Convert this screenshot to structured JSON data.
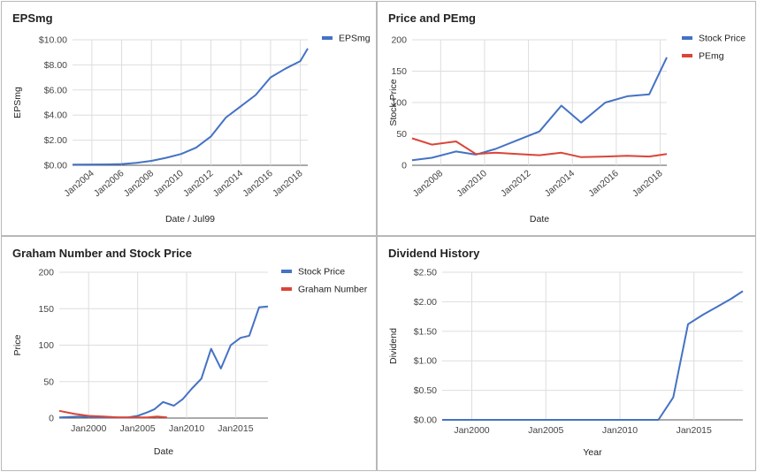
{
  "chart_data": [
    {
      "type": "line",
      "title": "EPSmg",
      "xlabel": "Date / Jul99",
      "ylabel": "EPSmg",
      "x_ticks": [
        "Jan2004",
        "Jan2006",
        "Jan2008",
        "Jan2010",
        "Jan2012",
        "Jan2014",
        "Jan2016",
        "Jan2018"
      ],
      "y_ticks": [
        "$0.00",
        "$2.00",
        "$4.00",
        "$6.00",
        "$8.00",
        "$10.00"
      ],
      "xlim": [
        2002.7,
        2018.5
      ],
      "ylim": [
        0,
        10
      ],
      "grid": true,
      "legend": "right",
      "series": [
        {
          "name": "EPSmg",
          "color": "#4472c4",
          "x": [
            2002.7,
            2004.0,
            2005.0,
            2006.0,
            2007.0,
            2008.0,
            2009.0,
            2010.0,
            2011.0,
            2012.0,
            2013.0,
            2014.0,
            2015.0,
            2016.0,
            2017.0,
            2018.0,
            2018.5
          ],
          "y": [
            0.05,
            0.06,
            0.07,
            0.1,
            0.2,
            0.35,
            0.6,
            0.9,
            1.4,
            2.3,
            3.8,
            4.7,
            5.6,
            7.0,
            7.7,
            8.3,
            9.3
          ]
        }
      ]
    },
    {
      "type": "line",
      "title": "Price and PEmg",
      "xlabel": "Date",
      "ylabel": "Stock Price",
      "x_ticks": [
        "Jan2008",
        "Jan2010",
        "Jan2012",
        "Jan2014",
        "Jan2016",
        "Jan2018"
      ],
      "y_ticks": [
        "0",
        "50",
        "100",
        "150",
        "200"
      ],
      "xlim": [
        2006.7,
        2018.3
      ],
      "ylim": [
        0,
        200
      ],
      "grid": true,
      "legend": "right",
      "series": [
        {
          "name": "Stock Price",
          "color": "#4472c4",
          "x": [
            2006.7,
            2007.6,
            2008.7,
            2009.6,
            2010.5,
            2011.5,
            2012.5,
            2013.5,
            2014.4,
            2015.5,
            2016.5,
            2017.5,
            2018.3
          ],
          "y": [
            8,
            12,
            22,
            17,
            26,
            40,
            54,
            95,
            68,
            100,
            110,
            113,
            172
          ]
        },
        {
          "name": "PEmg",
          "color": "#db4437",
          "x": [
            2006.7,
            2007.6,
            2008.7,
            2009.6,
            2010.5,
            2011.5,
            2012.5,
            2013.5,
            2014.4,
            2015.5,
            2016.5,
            2017.5,
            2018.3
          ],
          "y": [
            43,
            33,
            38,
            18,
            20,
            18,
            16,
            20,
            13,
            14,
            15,
            14,
            18
          ]
        }
      ]
    },
    {
      "type": "line",
      "title": "Graham Number and Stock Price",
      "xlabel": "Date",
      "ylabel": "Price",
      "x_ticks": [
        "Jan2000",
        "Jan2005",
        "Jan2010",
        "Jan2015"
      ],
      "y_ticks": [
        "0",
        "50",
        "100",
        "150",
        "200"
      ],
      "xlim": [
        1997.0,
        2018.3
      ],
      "ylim": [
        0,
        200
      ],
      "grid": true,
      "legend": "right",
      "series": [
        {
          "name": "Stock Price",
          "color": "#4472c4",
          "x": [
            1997.0,
            1999.0,
            2001.0,
            2003.0,
            2004.0,
            2005.0,
            2006.0,
            2006.7,
            2007.6,
            2008.7,
            2009.6,
            2010.5,
            2011.5,
            2012.5,
            2013.5,
            2014.5,
            2015.5,
            2016.4,
            2017.4,
            2018.3
          ],
          "y": [
            1,
            2,
            1,
            1,
            1,
            3,
            8,
            12,
            22,
            17,
            26,
            40,
            54,
            95,
            68,
            100,
            110,
            113,
            152,
            153
          ]
        },
        {
          "name": "Graham Number",
          "color": "#db4437",
          "x": [
            1997.0,
            1998.5,
            2000.0,
            2001.5,
            2003.0,
            2004.5,
            2006.0,
            2007.0,
            2008.0
          ],
          "y": [
            10,
            6,
            3,
            2,
            1,
            1,
            1,
            2,
            1
          ]
        }
      ]
    },
    {
      "type": "line",
      "title": "Dividend History",
      "xlabel": "Year",
      "ylabel": "Dividend",
      "x_ticks": [
        "Jan2000",
        "Jan2005",
        "Jan2010",
        "Jan2015"
      ],
      "y_ticks": [
        "$0.00",
        "$0.50",
        "$1.00",
        "$1.50",
        "$2.00",
        "$2.50"
      ],
      "xlim": [
        1998.0,
        2018.3
      ],
      "ylim": [
        0,
        2.5
      ],
      "grid": true,
      "legend": "none",
      "series": [
        {
          "name": "",
          "color": "#4472c4",
          "x": [
            1998.0,
            2010.0,
            2012.6,
            2013.6,
            2014.6,
            2015.6,
            2016.6,
            2017.5,
            2018.3
          ],
          "y": [
            0,
            0,
            0,
            0.38,
            1.62,
            1.78,
            1.92,
            2.05,
            2.18
          ]
        }
      ]
    }
  ]
}
